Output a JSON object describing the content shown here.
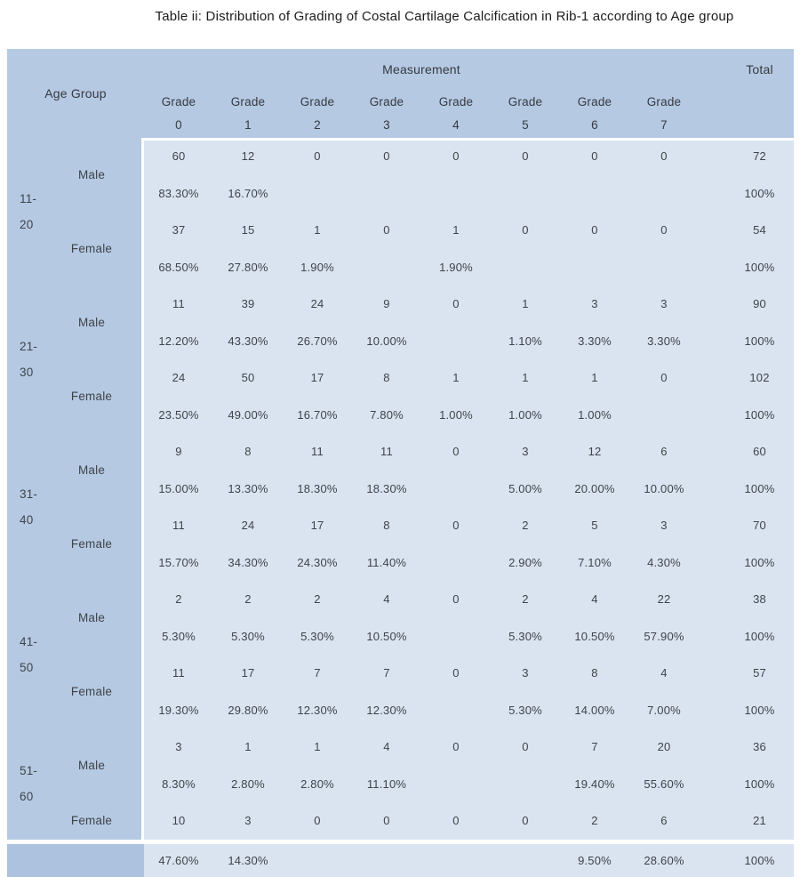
{
  "title": "Table ii: Distribution of Grading of Costal Cartilage Calcification in Rib-1 according to Age group",
  "colors": {
    "header_bg": "#b6c9e3",
    "body_bg": "#dae4f1",
    "footer_left_bg": "#adc2de",
    "text": "#3e4449"
  },
  "header": {
    "age_group": "Age Group",
    "measurement": "Measurement",
    "total": "Total",
    "grade_word": "Grade",
    "grade_numbers": [
      "0",
      "1",
      "2",
      "3",
      "4",
      "5",
      "6",
      "7"
    ]
  },
  "groups": [
    {
      "age_top": "11-",
      "age_bottom": "20",
      "male": {
        "label": "Male",
        "counts": [
          "60",
          "12",
          "0",
          "0",
          "0",
          "0",
          "0",
          "0"
        ],
        "total": "72",
        "pcts": [
          "83.30%",
          "16.70%",
          "",
          "",
          "",
          "",
          "",
          ""
        ],
        "total_pct": "100%"
      },
      "female": {
        "label": "Female",
        "counts": [
          "37",
          "15",
          "1",
          "0",
          "1",
          "0",
          "0",
          "0"
        ],
        "total": "54",
        "pcts": [
          "68.50%",
          "27.80%",
          "1.90%",
          "",
          "1.90%",
          "",
          "",
          ""
        ],
        "total_pct": "100%"
      }
    },
    {
      "age_top": "21-",
      "age_bottom": "30",
      "male": {
        "label": "Male",
        "counts": [
          "11",
          "39",
          "24",
          "9",
          "0",
          "1",
          "3",
          "3"
        ],
        "total": "90",
        "pcts": [
          "12.20%",
          "43.30%",
          "26.70%",
          "10.00%",
          "",
          "1.10%",
          "3.30%",
          "3.30%"
        ],
        "total_pct": "100%"
      },
      "female": {
        "label": "Female",
        "counts": [
          "24",
          "50",
          "17",
          "8",
          "1",
          "1",
          "1",
          "0"
        ],
        "total": "102",
        "pcts": [
          "23.50%",
          "49.00%",
          "16.70%",
          "7.80%",
          "1.00%",
          "1.00%",
          "1.00%",
          ""
        ],
        "total_pct": "100%"
      }
    },
    {
      "age_top": "31-",
      "age_bottom": "40",
      "male": {
        "label": "Male",
        "counts": [
          "9",
          "8",
          "11",
          "11",
          "0",
          "3",
          "12",
          "6"
        ],
        "total": "60",
        "pcts": [
          "15.00%",
          "13.30%",
          "18.30%",
          "18.30%",
          "",
          "5.00%",
          "20.00%",
          "10.00%"
        ],
        "total_pct": "100%"
      },
      "female": {
        "label": "Female",
        "counts": [
          "11",
          "24",
          "17",
          "8",
          "0",
          "2",
          "5",
          "3"
        ],
        "total": "70",
        "pcts": [
          "15.70%",
          "34.30%",
          "24.30%",
          "11.40%",
          "",
          "2.90%",
          "7.10%",
          "4.30%"
        ],
        "total_pct": "100%"
      }
    },
    {
      "age_top": "41-",
      "age_bottom": "50",
      "male": {
        "label": "Male",
        "counts": [
          "2",
          "2",
          "2",
          "4",
          "0",
          "2",
          "4",
          "22"
        ],
        "total": "38",
        "pcts": [
          "5.30%",
          "5.30%",
          "5.30%",
          "10.50%",
          "",
          "5.30%",
          "10.50%",
          "57.90%"
        ],
        "total_pct": "100%"
      },
      "female": {
        "label": "Female",
        "counts": [
          "11",
          "17",
          "7",
          "7",
          "0",
          "3",
          "8",
          "4"
        ],
        "total": "57",
        "pcts": [
          "19.30%",
          "29.80%",
          "12.30%",
          "12.30%",
          "",
          "5.30%",
          "14.00%",
          "7.00%"
        ],
        "total_pct": "100%"
      }
    },
    {
      "age_top": "51-",
      "age_bottom": "60",
      "male": {
        "label": "Male",
        "counts": [
          "3",
          "1",
          "1",
          "4",
          "0",
          "0",
          "7",
          "20"
        ],
        "total": "36",
        "pcts": [
          "8.30%",
          "2.80%",
          "2.80%",
          "11.10%",
          "",
          "",
          "19.40%",
          "55.60%"
        ],
        "total_pct": "100%"
      },
      "female": {
        "label": "Female",
        "counts": [
          "10",
          "3",
          "0",
          "0",
          "0",
          "0",
          "2",
          "6"
        ],
        "total": "21"
      }
    }
  ],
  "footer": {
    "pcts": [
      "47.60%",
      "14.30%",
      "",
      "",
      "",
      "",
      "9.50%",
      "28.60%"
    ],
    "total_pct": "100%"
  }
}
